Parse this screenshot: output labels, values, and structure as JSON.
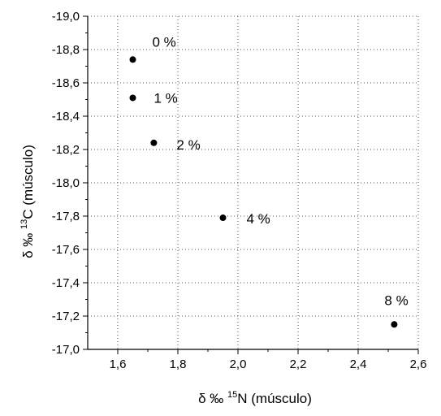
{
  "chart_data": {
    "type": "scatter",
    "xlabel": {
      "prefix": "δ ‰ ",
      "sup": "15",
      "suffix": "N (músculo)"
    },
    "ylabel": {
      "prefix": "δ ‰ ",
      "sup": "13",
      "suffix": "C (músculo)"
    },
    "xlim": [
      1.5,
      2.6
    ],
    "ylim": [
      -17.0,
      -19.0
    ],
    "y_axis_inverted": true,
    "grid": "dotted",
    "x_ticks": [
      1.6,
      1.8,
      2.0,
      2.2,
      2.4,
      2.6
    ],
    "y_ticks": [
      -19.0,
      -18.8,
      -18.6,
      -18.4,
      -18.2,
      -18.0,
      -17.8,
      -17.6,
      -17.4,
      -17.2,
      -17.0
    ],
    "x_tick_labels": [
      "1,6",
      "1,8",
      "2,0",
      "2,2",
      "2,4",
      "2,6"
    ],
    "y_tick_labels": [
      "-19,0",
      "-18,8",
      "-18,6",
      "-18,4",
      "-18,2",
      "-18,0",
      "-17,8",
      "-17,6",
      "-17,4",
      "-17,2",
      "-17,0"
    ],
    "points": [
      {
        "x": 1.65,
        "y": -18.74,
        "label": "0 %"
      },
      {
        "x": 1.65,
        "y": -18.51,
        "label": "1 %"
      },
      {
        "x": 1.72,
        "y": -18.24,
        "label": "2 %"
      },
      {
        "x": 1.95,
        "y": -17.79,
        "label": "4 %"
      },
      {
        "x": 2.52,
        "y": -17.15,
        "label": "8 %"
      }
    ],
    "marker_color": "#000000"
  }
}
